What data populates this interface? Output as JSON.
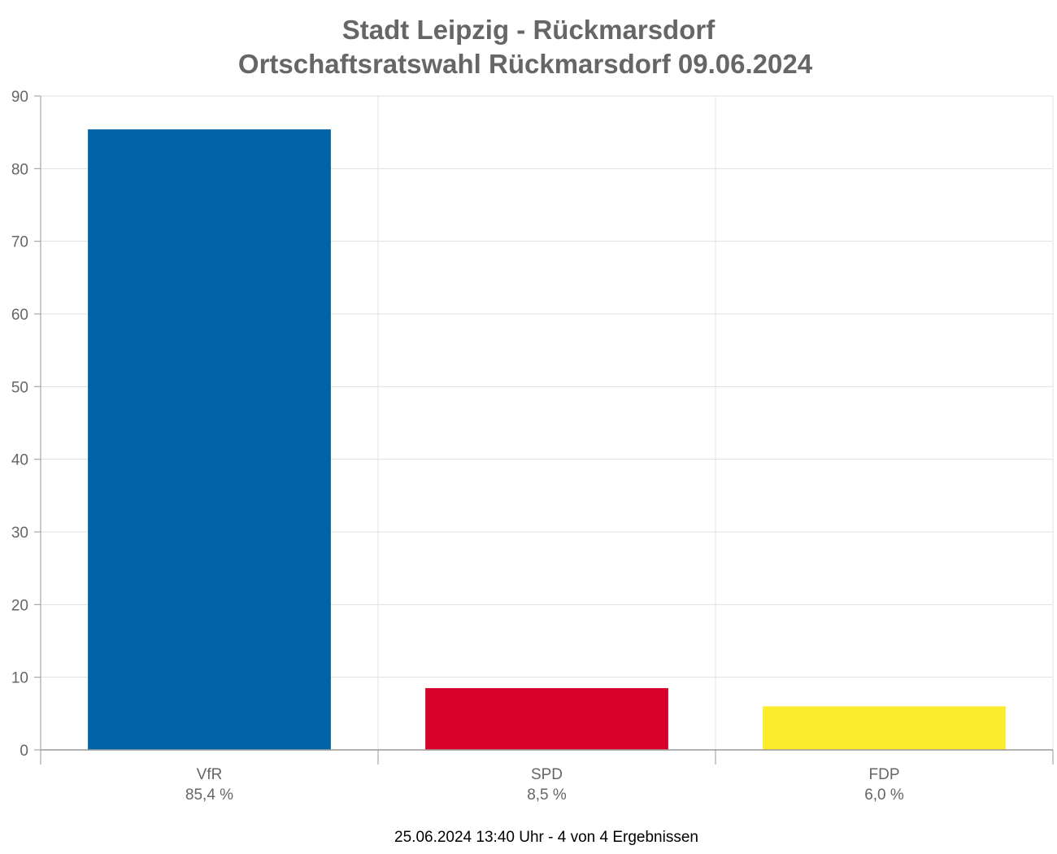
{
  "chart_data": {
    "type": "bar",
    "title": "Stadt Leipzig - Rückmarsdorf",
    "subtitle": "Ortschaftsratswahl Rückmarsdorf 09.06.2024",
    "categories": [
      "VfR",
      "SPD",
      "FDP"
    ],
    "category_sublabels": [
      "85,4 %",
      "8,5 %",
      "6,0 %"
    ],
    "values": [
      85.4,
      8.5,
      6.0
    ],
    "colors": [
      "#0063a6",
      "#d7002a",
      "#fcec2e"
    ],
    "ylim": [
      0,
      90
    ],
    "yticks": [
      "0",
      "10",
      "20",
      "30",
      "40",
      "50",
      "60",
      "70",
      "80",
      "90"
    ],
    "grid": true,
    "footer": "25.06.2024 13:40 Uhr - 4 von 4 Ergebnissen"
  }
}
